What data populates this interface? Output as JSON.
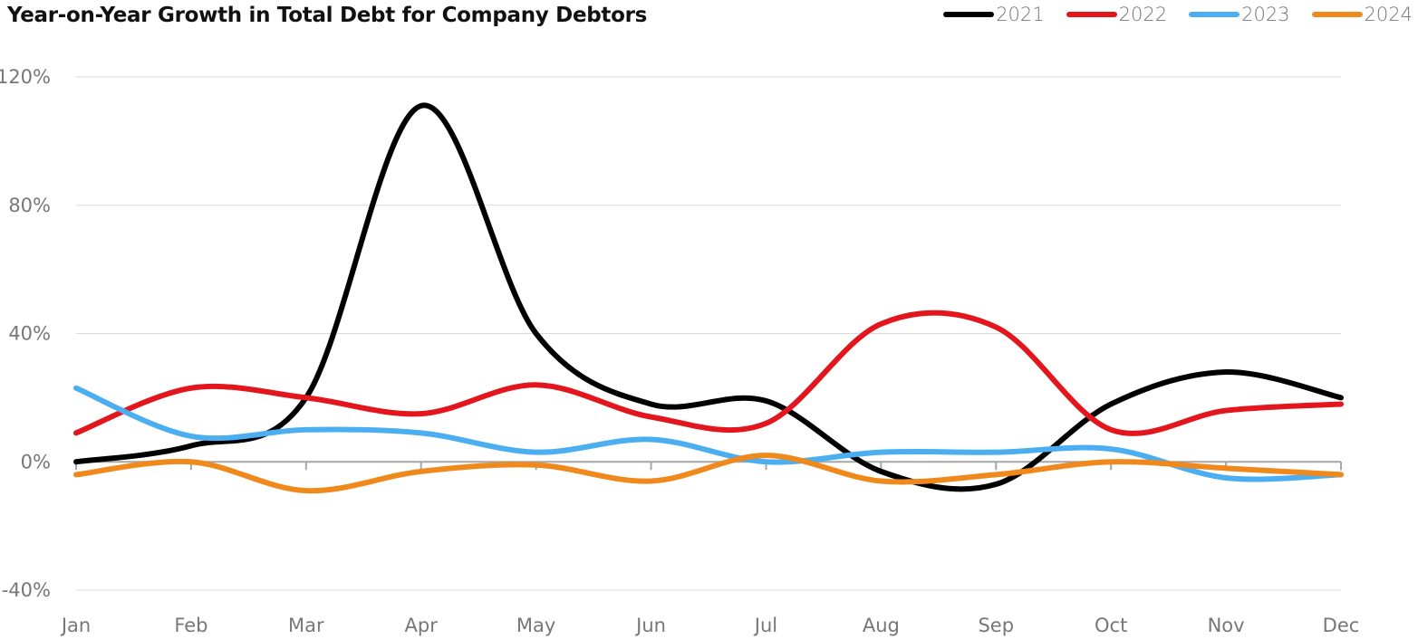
{
  "chart_data": {
    "type": "line",
    "title": "Year-on-Year Growth in Total Debt for Company Debtors",
    "xlabel": "",
    "ylabel": "",
    "categories": [
      "Jan",
      "Feb",
      "Mar",
      "Apr",
      "May",
      "Jun",
      "Jul",
      "Aug",
      "Sep",
      "Oct",
      "Nov",
      "Dec"
    ],
    "y_ticks": [
      "120%",
      "80%",
      "40%",
      "0%",
      "-40%"
    ],
    "ylim": [
      -40,
      120
    ],
    "grid": true,
    "legend_position": "top-right",
    "series": [
      {
        "name": "2021",
        "color": "#000000",
        "values": [
          0,
          5,
          20,
          111,
          40,
          18,
          19,
          -3,
          -7,
          18,
          28,
          20
        ]
      },
      {
        "name": "2022",
        "color": "#e3161e",
        "values": [
          9,
          23,
          20,
          15,
          24,
          14,
          12,
          43,
          42,
          10,
          16,
          18
        ]
      },
      {
        "name": "2023",
        "color": "#4aaef0",
        "values": [
          23,
          8,
          10,
          9,
          3,
          7,
          0,
          3,
          3,
          4,
          -5,
          -4
        ]
      },
      {
        "name": "2024",
        "color": "#f0891c",
        "values": [
          -4,
          0,
          -9,
          -3,
          -1,
          -6,
          2,
          -6,
          -4,
          0,
          -2,
          -4
        ]
      }
    ]
  }
}
